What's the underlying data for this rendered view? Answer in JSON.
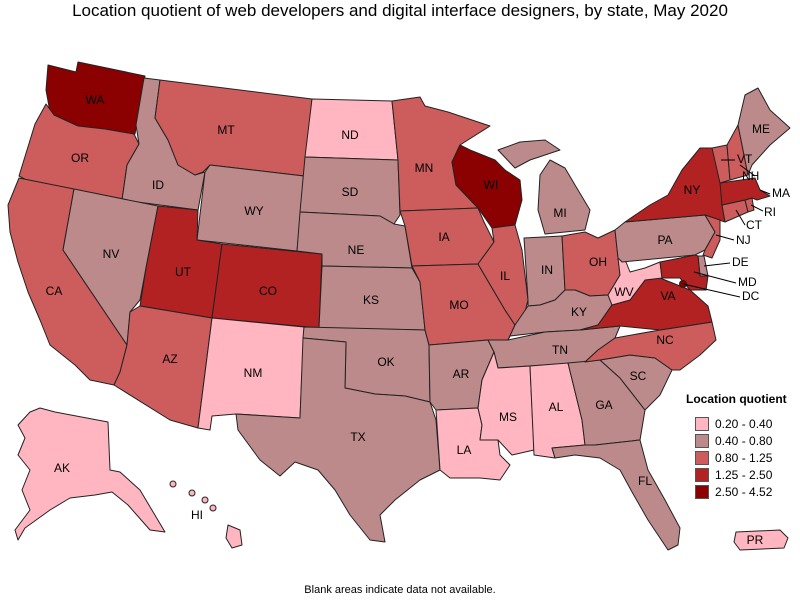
{
  "title": "Location quotient of web developers and digital interface designers, by state, May 2020",
  "footnote": "Blank areas indicate data not available.",
  "legend": {
    "title": "Location quotient",
    "items": [
      {
        "label": "0.20 - 0.40",
        "color": "#ffb6c1"
      },
      {
        "label": "0.40 - 0.80",
        "color": "#bc8a8a"
      },
      {
        "label": "0.80 - 1.25",
        "color": "#cd5c5c"
      },
      {
        "label": "1.25 - 2.50",
        "color": "#b22222"
      },
      {
        "label": "2.50 - 4.52",
        "color": "#8b0000"
      }
    ]
  },
  "states": {
    "WA": {
      "label": "WA",
      "class": 4
    },
    "OR": {
      "label": "OR",
      "class": 2
    },
    "CA": {
      "label": "CA",
      "class": 2
    },
    "ID": {
      "label": "ID",
      "class": 1
    },
    "NV": {
      "label": "NV",
      "class": 1
    },
    "MT": {
      "label": "MT",
      "class": 2
    },
    "WY": {
      "label": "WY",
      "class": 1
    },
    "UT": {
      "label": "UT",
      "class": 3
    },
    "AZ": {
      "label": "AZ",
      "class": 2
    },
    "CO": {
      "label": "CO",
      "class": 3
    },
    "NM": {
      "label": "NM",
      "class": 0
    },
    "ND": {
      "label": "ND",
      "class": 0
    },
    "SD": {
      "label": "SD",
      "class": 1
    },
    "NE": {
      "label": "NE",
      "class": 1
    },
    "KS": {
      "label": "KS",
      "class": 1
    },
    "OK": {
      "label": "OK",
      "class": 1
    },
    "TX": {
      "label": "TX",
      "class": 1
    },
    "MN": {
      "label": "MN",
      "class": 2
    },
    "IA": {
      "label": "IA",
      "class": 2
    },
    "MO": {
      "label": "MO",
      "class": 2
    },
    "AR": {
      "label": "AR",
      "class": 1
    },
    "LA": {
      "label": "LA",
      "class": 0
    },
    "WI": {
      "label": "WI",
      "class": 4
    },
    "IL": {
      "label": "IL",
      "class": 2
    },
    "MI": {
      "label": "MI",
      "class": 1
    },
    "IN": {
      "label": "IN",
      "class": 1
    },
    "OH": {
      "label": "OH",
      "class": 2
    },
    "KY": {
      "label": "KY",
      "class": 1
    },
    "TN": {
      "label": "TN",
      "class": 1
    },
    "MS": {
      "label": "MS",
      "class": 0
    },
    "AL": {
      "label": "AL",
      "class": 0
    },
    "GA": {
      "label": "GA",
      "class": 1
    },
    "FL": {
      "label": "FL",
      "class": 1
    },
    "SC": {
      "label": "SC",
      "class": 1
    },
    "NC": {
      "label": "NC",
      "class": 2
    },
    "VA": {
      "label": "VA",
      "class": 3
    },
    "WV": {
      "label": "WV",
      "class": 0
    },
    "PA": {
      "label": "PA",
      "class": 1
    },
    "NY": {
      "label": "NY",
      "class": 3
    },
    "ME": {
      "label": "ME",
      "class": 1
    },
    "VT": {
      "label": "VT",
      "class": 2
    },
    "NH": {
      "label": "NH",
      "class": 2
    },
    "MA": {
      "label": "MA",
      "class": 3
    },
    "RI": {
      "label": "RI",
      "class": 2
    },
    "CT": {
      "label": "CT",
      "class": 2
    },
    "NJ": {
      "label": "NJ",
      "class": 2
    },
    "DE": {
      "label": "DE",
      "class": 1
    },
    "MD": {
      "label": "MD",
      "class": 3
    },
    "DC": {
      "label": "DC",
      "class": 4
    },
    "AK": {
      "label": "AK",
      "class": 0
    },
    "HI": {
      "label": "HI",
      "class": 0
    },
    "PR": {
      "label": "PR",
      "class": 0
    }
  }
}
